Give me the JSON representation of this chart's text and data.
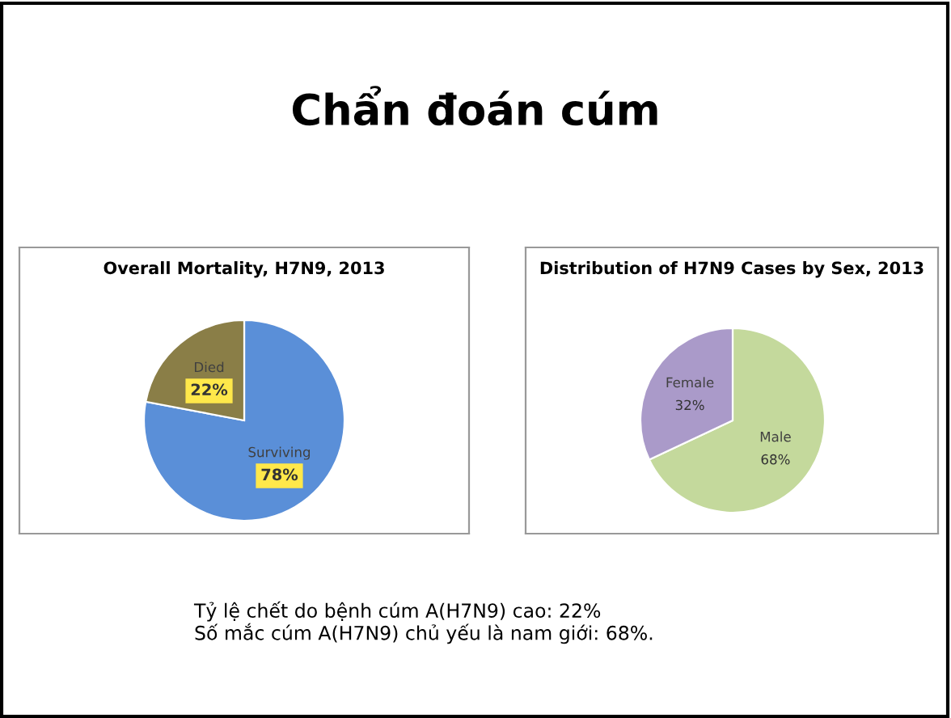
{
  "chart_data": [
    {
      "type": "pie",
      "title": "Overall Mortality, H7N9, 2013",
      "categories": [
        "Surviving",
        "Died"
      ],
      "values": [
        78,
        22
      ],
      "colors": [
        "#5a8fd8",
        "#8a7e47"
      ],
      "value_labels": [
        "78%",
        "22%"
      ],
      "annotations": [
        "Chẩn đoán cúm",
        "Tỷ lệ chết do bệnh cúm A(H7N9) cao: 22%\nSố mắc cúm A(H7N9) chủ yếu là nam giới: 68%."
      ]
    },
    {
      "type": "pie",
      "title": "Distribution of H7N9 Cases by Sex, 2013",
      "categories": [
        "Male",
        "Female"
      ],
      "values": [
        68,
        32
      ],
      "colors": [
        "#c4d99c",
        "#aa9ac9"
      ],
      "value_labels": [
        "68%",
        "32%"
      ]
    }
  ]
}
